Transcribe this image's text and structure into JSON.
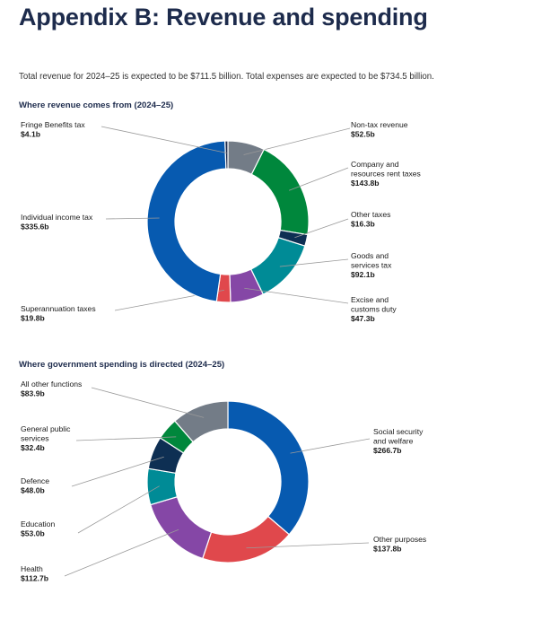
{
  "page": {
    "title": "Appendix B: Revenue and spending",
    "intro": "Total revenue for 2024–25 is expected to be $711.5 billion. Total expenses are expected to be $734.5 billion."
  },
  "chart_data": [
    {
      "type": "pie",
      "variant": "donut",
      "title": "Where revenue comes from (2024–25)",
      "unit": "$b",
      "slices": [
        {
          "label": [
            "Non-tax revenue"
          ],
          "display": "$52.5b",
          "value": 52.5,
          "color": "#737c87"
        },
        {
          "label": [
            "Company and",
            "resources rent taxes"
          ],
          "display": "$143.8b",
          "value": 143.8,
          "color": "#00873c"
        },
        {
          "label": [
            "Other taxes"
          ],
          "display": "$16.3b",
          "value": 16.3,
          "color": "#0e2f53"
        },
        {
          "label": [
            "Goods and",
            "services tax"
          ],
          "display": "$92.1b",
          "value": 92.1,
          "color": "#008b96"
        },
        {
          "label": [
            "Excise and",
            "customs duty"
          ],
          "display": "$47.3b",
          "value": 47.3,
          "color": "#8547a6"
        },
        {
          "label": [
            "Superannuation taxes"
          ],
          "display": "$19.8b",
          "value": 19.8,
          "color": "#e0484c"
        },
        {
          "label": [
            "Individual income tax"
          ],
          "display": "$335.6b",
          "value": 335.6,
          "color": "#075ab0"
        },
        {
          "label": [
            "Fringe Benefits tax"
          ],
          "display": "$4.1b",
          "value": 4.1,
          "color": "#1d2b4c"
        }
      ]
    },
    {
      "type": "pie",
      "variant": "donut",
      "title": "Where government spending is directed (2024–25)",
      "unit": "$b",
      "slices": [
        {
          "label": [
            "Social security",
            "and welfare"
          ],
          "display": "$266.7b",
          "value": 266.7,
          "color": "#075ab0"
        },
        {
          "label": [
            "Other purposes"
          ],
          "display": "$137.8b",
          "value": 137.8,
          "color": "#e0484c"
        },
        {
          "label": [
            "Health"
          ],
          "display": "$112.7b",
          "value": 112.7,
          "color": "#8547a6"
        },
        {
          "label": [
            "Education"
          ],
          "display": "$53.0b",
          "value": 53.0,
          "color": "#008b96"
        },
        {
          "label": [
            "Defence"
          ],
          "display": "$48.0b",
          "value": 48.0,
          "color": "#0e2f53"
        },
        {
          "label": [
            "General public",
            "services"
          ],
          "display": "$32.4b",
          "value": 32.4,
          "color": "#00873c"
        },
        {
          "label": [
            "All other functions"
          ],
          "display": "$83.9b",
          "value": 83.9,
          "color": "#737c87"
        }
      ]
    }
  ]
}
